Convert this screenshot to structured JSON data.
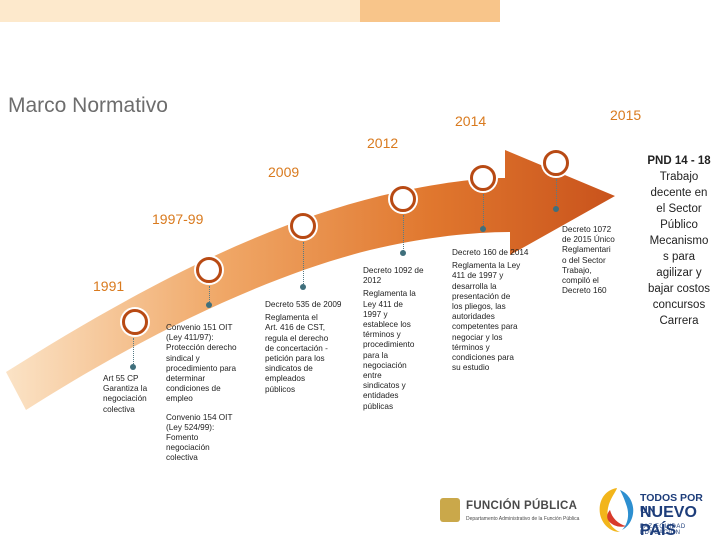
{
  "title": "Marco Normativo",
  "colors": {
    "accent": "#d97a1e",
    "arrow_dark": "#c0501b",
    "arrow_light": "#f4c38c",
    "node_border": "#b84a14",
    "pin": "#3f6f7c"
  },
  "years": [
    "1991",
    "1997-99",
    "2009",
    "2012",
    "2014",
    "2015"
  ],
  "milestones": [
    {
      "heading": "",
      "lines": [
        "Art 55 CP",
        "Garantiza la",
        "negociación",
        "colectiva"
      ]
    },
    {
      "heading": "",
      "lines": [
        "Convenio 151 OIT",
        "(Ley 411/97):",
        "Protección derecho",
        "sindical y",
        "procedimiento para",
        "determinar",
        "condiciones de",
        "empleo",
        "",
        "Convenio 154  OIT",
        "(Ley 524/99):",
        "Fomento",
        "negociación",
        "colectiva"
      ]
    },
    {
      "heading": "Decreto 535 de 2009",
      "lines": [
        "Reglamenta el",
        "Art. 416 de CST,",
        "regula el derecho",
        "de concertación -",
        "petición para los",
        "sindicatos de",
        "empleados",
        "públicos"
      ]
    },
    {
      "heading": "Decreto 1092 de 2012",
      "lines": [
        "Reglamenta la",
        "Ley 411 de",
        "1997 y",
        "establece los",
        "términos y",
        "procedimiento",
        "para la",
        "negociación",
        "entre",
        "sindicatos y",
        "entidades",
        "públicas"
      ]
    },
    {
      "heading": "Decreto 160  de 2014",
      "lines": [
        "Reglamenta la Ley",
        "411 de 1997 y",
        "desarrolla la",
        "presentación de",
        "los pliegos, las",
        "autoridades",
        "competentes para",
        "negociar y los",
        "términos y",
        "condiciones para",
        "su estudio"
      ]
    },
    {
      "heading": "",
      "lines": [
        "Decreto 1072",
        "de 2015 Único",
        "Reglamentari",
        "o del Sector",
        "Trabajo,",
        "compiló el",
        "Decreto 160"
      ]
    }
  ],
  "pnd": {
    "heading": "PND 14 - 18",
    "lines": [
      "Trabajo",
      "decente en",
      "el Sector",
      "Público",
      "Mecanismo",
      "s para",
      "agilizar y",
      "bajar costos",
      "concursos",
      "Carrera"
    ]
  },
  "logos": {
    "funcion_publica": {
      "name": "FUNCIÓN PÚBLICA",
      "sub": "Departamento Administrativo de la Función Pública"
    },
    "nuevo_pais": {
      "line1": "TODOS POR UN",
      "line2": "NUEVO PAÍS",
      "line3": "PAZ  EQUIDAD  EDUCACIÓN"
    }
  }
}
